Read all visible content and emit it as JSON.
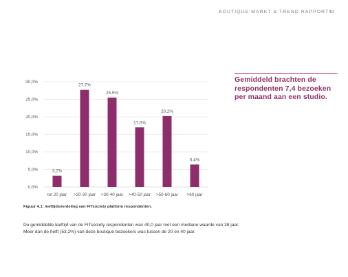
{
  "header": {
    "title": "BOUTIQUE MARKT & TREND RAPPORT",
    "page_number": "49"
  },
  "callout": {
    "text": "Gemiddeld brachten de respondenten 7,4 bezoeken per maand aan een studio."
  },
  "caption": "Figuur 4.1: leeftijdsverdeling van FITsociety platform respondenten.",
  "body_text": "De gemiddelde leeftijd van de FITsociety respondenten was 40,0 jaar met een mediane waarde van 38 jaar. Meer dan de helft (53,2%) van deze boutique bezoekers was tussen de 20 en 40 jaar.",
  "colors": {
    "bar": "#8e2d6c",
    "accent": "#93306a",
    "grid": "#d9d9d9"
  },
  "chart_data": {
    "type": "bar",
    "categories": [
      "tot 20 jaar",
      ">20-30 jaar",
      ">30-40 jaar",
      ">40-50 jaar",
      ">50-60 jaar",
      ">60 jaar"
    ],
    "values": [
      3.2,
      27.7,
      25.5,
      17.0,
      20.2,
      6.4
    ],
    "data_labels": [
      "3,2%",
      "27,7%",
      "25,5%",
      "17,0%",
      "20,2%",
      "6,4%"
    ],
    "y_ticks": [
      0,
      5,
      10,
      15,
      20,
      25,
      30
    ],
    "y_tick_labels": [
      "0,0%",
      "5,0%",
      "10,0%",
      "15,0%",
      "20,0%",
      "25,0%",
      "30,0%"
    ],
    "ylim": [
      0,
      30
    ],
    "grid": true,
    "title": "",
    "xlabel": "",
    "ylabel": ""
  }
}
